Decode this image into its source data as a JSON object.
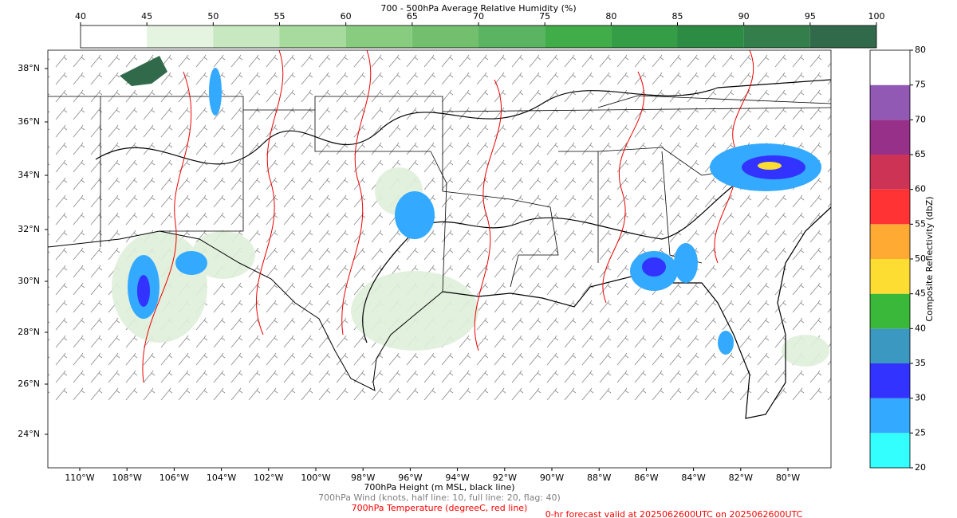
{
  "top_colorbar": {
    "title": "700 - 500hPa Average Relative Humidity (%)",
    "ticks": [
      40,
      45,
      50,
      55,
      60,
      65,
      70,
      75,
      80,
      85,
      90,
      95,
      100
    ],
    "colors": [
      "#ffffff",
      "#e5f4e1",
      "#c7e8c0",
      "#a7da9d",
      "#88cc80",
      "#72c06e",
      "#5ab462",
      "#40ad49",
      "#349d45",
      "#2d8c43",
      "#347e4b",
      "#316a4a"
    ]
  },
  "right_colorbar": {
    "label": "Composite Reflectivity (dbZ)",
    "ticks": [
      20,
      25,
      30,
      35,
      40,
      45,
      50,
      55,
      60,
      65,
      70,
      75,
      80
    ],
    "colors": [
      "#33ffff",
      "#33aaff",
      "#3333ff",
      "#3b98c0",
      "#3ab83a",
      "#fedd33",
      "#ffaa33",
      "#ff3333",
      "#cc3355",
      "#963089",
      "#9158b4",
      "#ffffff"
    ]
  },
  "map": {
    "lat_labels": [
      "24°N",
      "26°N",
      "28°N",
      "30°N",
      "32°N",
      "34°N",
      "36°N",
      "38°N"
    ],
    "lon_labels": [
      "110°W",
      "108°W",
      "106°W",
      "104°W",
      "102°W",
      "100°W",
      "98°W",
      "96°W",
      "94°W",
      "92°W",
      "90°W",
      "88°W",
      "86°W",
      "84°W",
      "82°W",
      "80°W"
    ]
  },
  "captions": [
    {
      "text": "700hPa Height (m MSL, black line)",
      "color": "#000000"
    },
    {
      "text": "700hPa Wind (knots, half line: 10, full line: 20, flag: 40)",
      "color": "#808080"
    },
    {
      "text": "700hPa Temperature (degreeC, red line)",
      "color": "#ff0000"
    },
    {
      "text": "0-hr forecast valid at 2025062600UTC on 2025062600UTC",
      "color": "#ff0000"
    }
  ]
}
